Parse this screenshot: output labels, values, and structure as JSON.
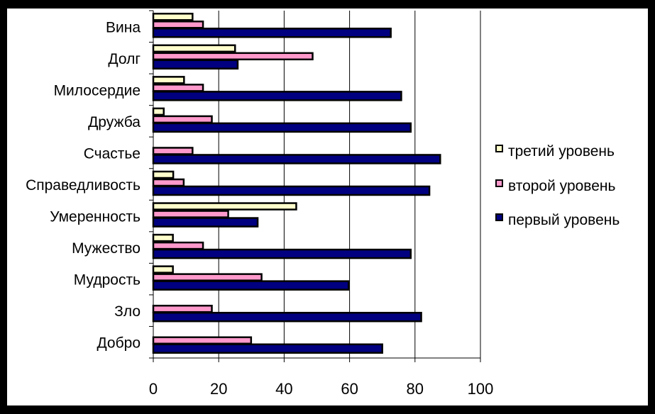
{
  "chart_data": {
    "type": "bar",
    "orientation": "horizontal",
    "title": "",
    "xlabel": "",
    "ylabel": "",
    "xlim": [
      0,
      100
    ],
    "xticks": [
      0,
      20,
      40,
      60,
      80,
      100
    ],
    "grid": true,
    "legend_position": "right",
    "categories": [
      "Вина",
      "Долг",
      "Милосердие",
      "Дружба",
      "Счастье",
      "Справедливость",
      "Умеренность",
      "Мужество",
      "Мудрость",
      "Зло",
      "Добро"
    ],
    "series": [
      {
        "name": "третий уровень",
        "color": "#ffffcc",
        "values": [
          12,
          25,
          9.4,
          3.2,
          0,
          6.1,
          43.7,
          6,
          6,
          0,
          0
        ]
      },
      {
        "name": "второй уровень",
        "color": "#ff99cc",
        "values": [
          15.2,
          48.7,
          15.2,
          17.9,
          12,
          9.3,
          22.9,
          15.2,
          33.1,
          17.9,
          29.9
        ]
      },
      {
        "name": "первый уровень",
        "color": "#000080",
        "values": [
          72.6,
          25.8,
          75.8,
          78.7,
          87.7,
          84.4,
          31.9,
          78.7,
          59.7,
          81.9,
          70
        ]
      }
    ]
  }
}
